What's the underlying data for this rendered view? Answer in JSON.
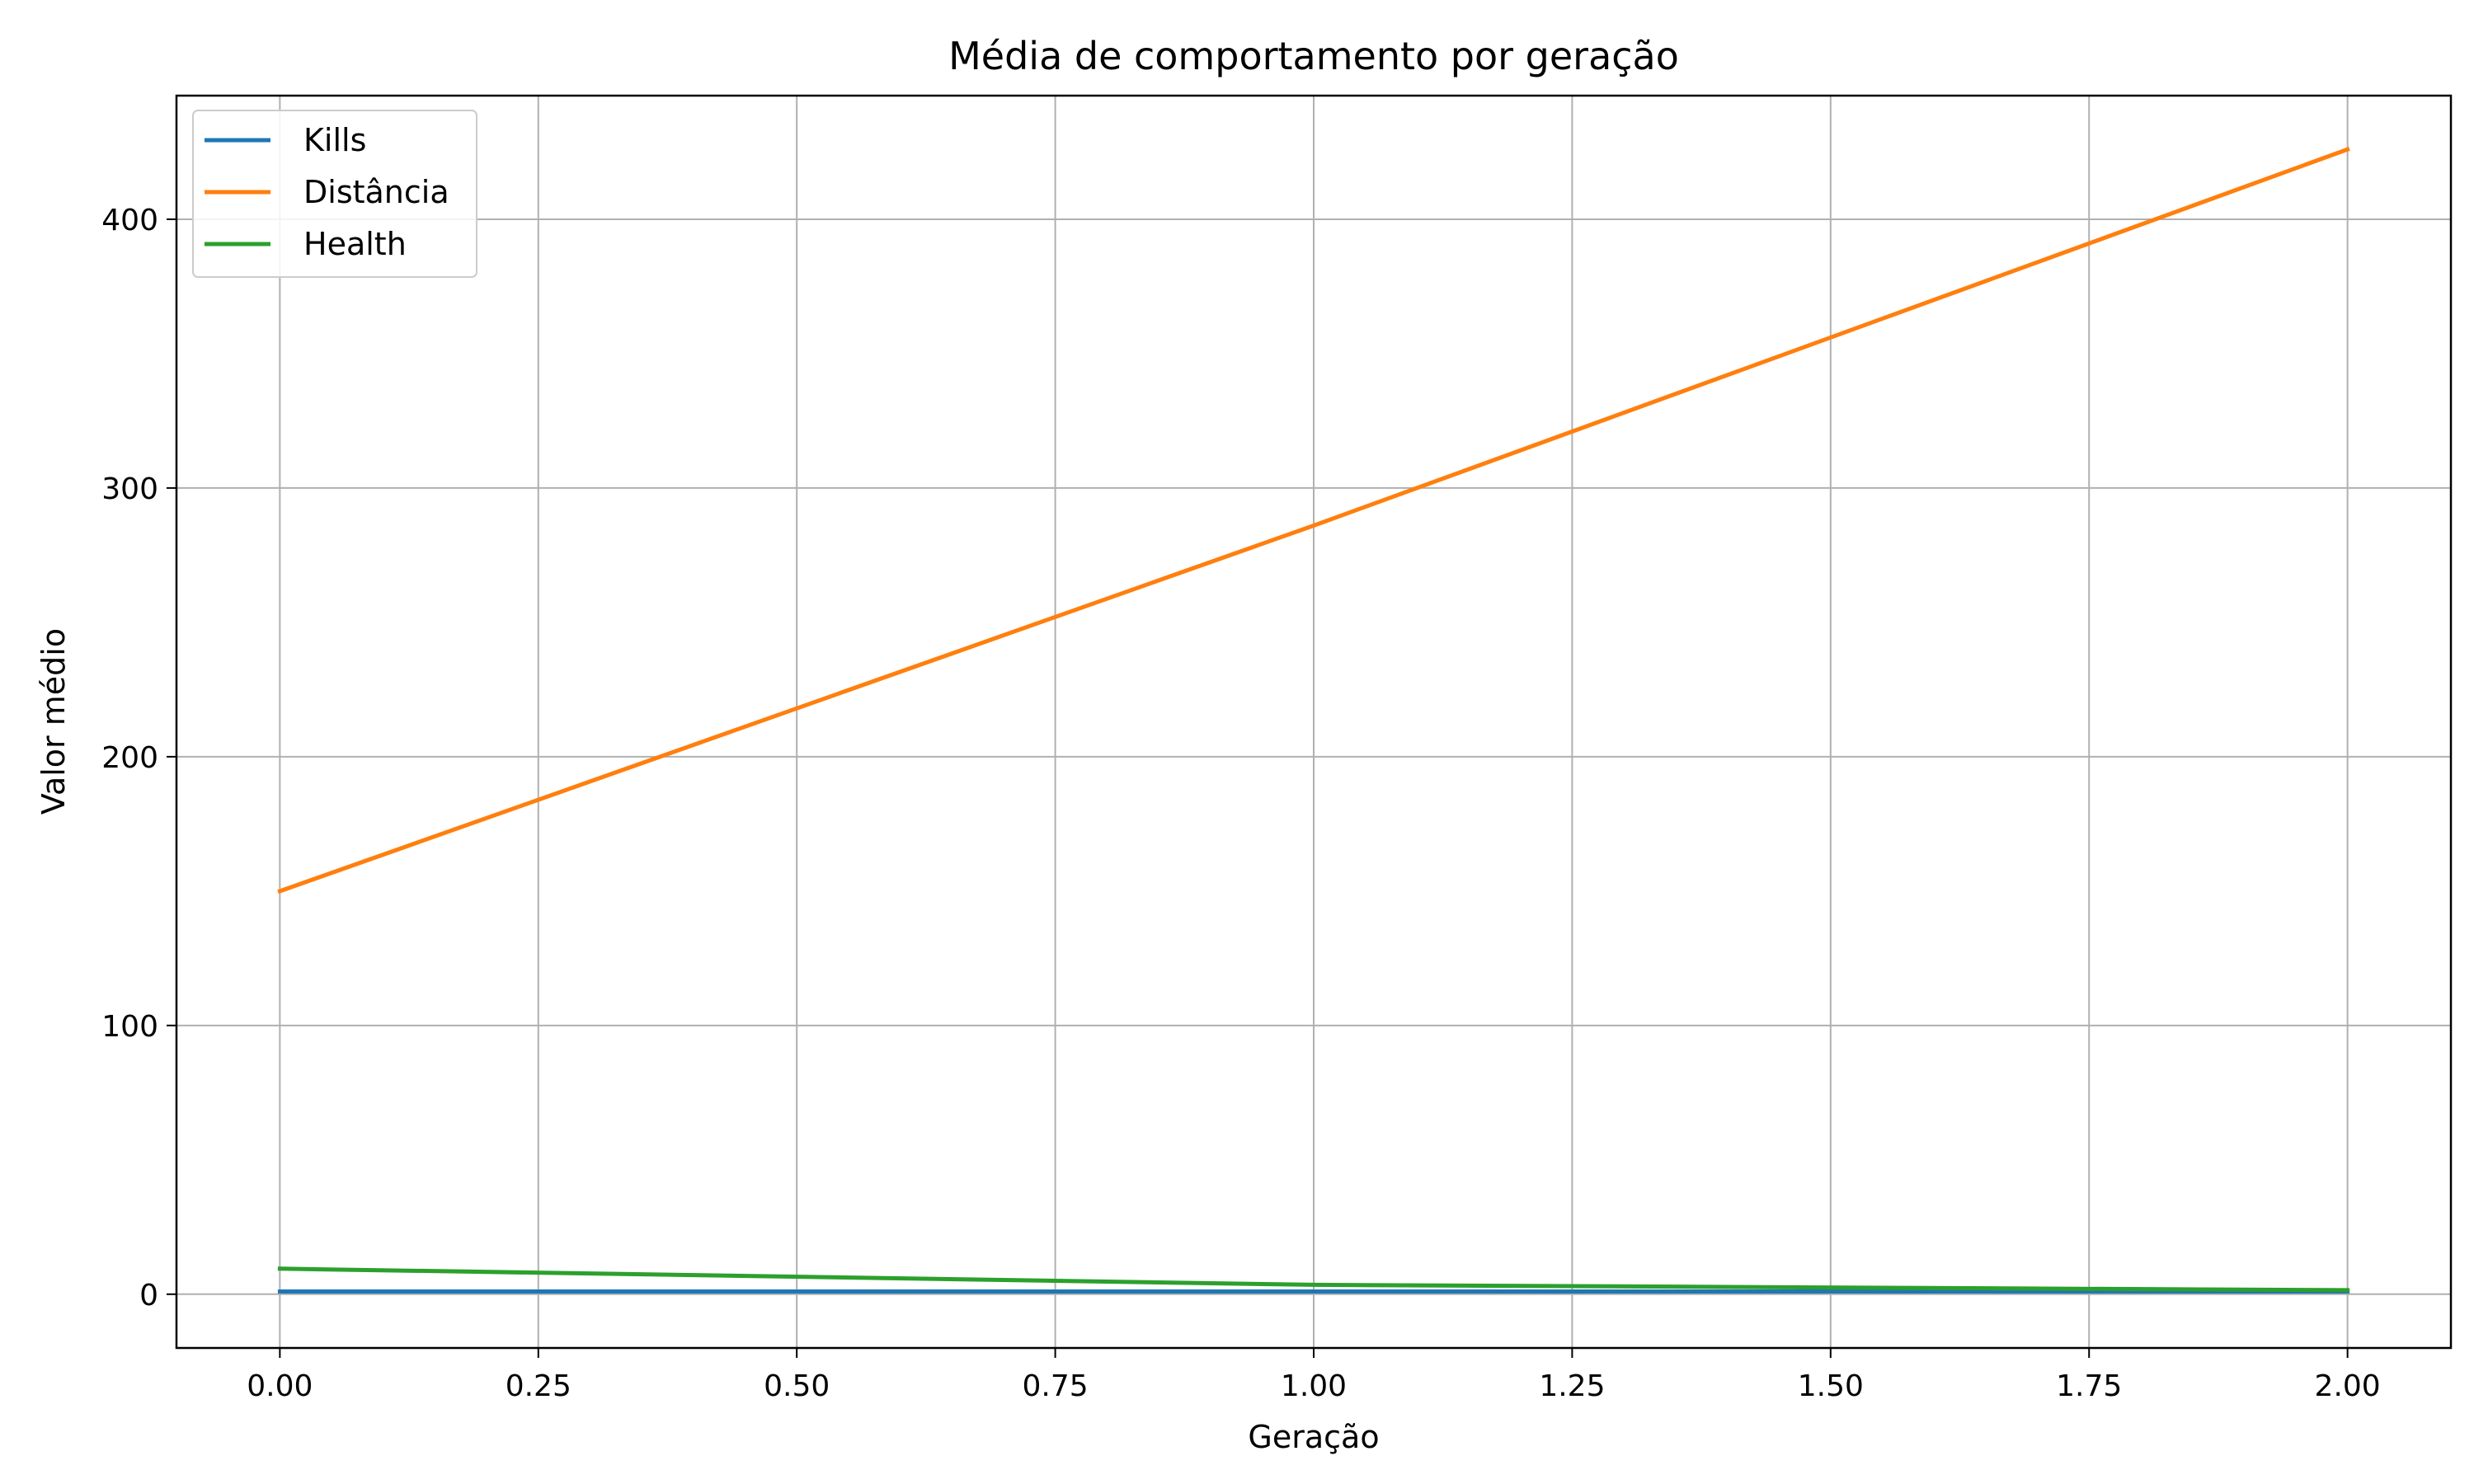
{
  "chart_data": {
    "type": "line",
    "title": "Média de comportamento por geração",
    "xlabel": "Geração",
    "ylabel": "Valor médio",
    "x": [
      0,
      1,
      2
    ],
    "series": [
      {
        "name": "Kills",
        "values": [
          1,
          1,
          1
        ],
        "color": "#1f77b4"
      },
      {
        "name": "Distância",
        "values": [
          150,
          286,
          426
        ],
        "color": "#ff7f0e"
      },
      {
        "name": "Health",
        "values": [
          9.5,
          3.5,
          1.5
        ],
        "color": "#2ca02c"
      }
    ],
    "xlim": [
      -0.1,
      2.1
    ],
    "ylim": [
      -20,
      446
    ],
    "x_ticks": [
      "0.00",
      "0.25",
      "0.50",
      "0.75",
      "1.00",
      "1.25",
      "1.50",
      "1.75",
      "2.00"
    ],
    "y_ticks": [
      "0",
      "100",
      "200",
      "300",
      "400"
    ],
    "grid": true,
    "legend_position": "top-left"
  }
}
